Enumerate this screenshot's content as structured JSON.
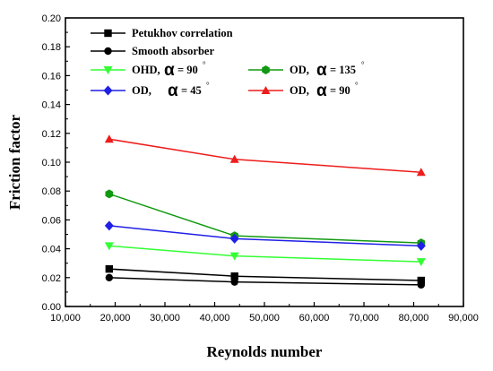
{
  "chart_data": {
    "type": "line",
    "xlabel": "Reynolds number",
    "ylabel": "Friction factor",
    "xlim": [
      10000,
      90000
    ],
    "ylim": [
      0.0,
      0.2
    ],
    "x_ticks": [
      10000,
      20000,
      30000,
      40000,
      50000,
      60000,
      70000,
      80000,
      90000
    ],
    "x_tick_labels": [
      "10,000",
      "20,000",
      "30,000",
      "40,000",
      "50,000",
      "60,000",
      "70,000",
      "80,000",
      "90,000"
    ],
    "y_ticks": [
      0.0,
      0.02,
      0.04,
      0.06,
      0.08,
      0.1,
      0.12,
      0.14,
      0.16,
      0.18,
      0.2
    ],
    "y_tick_labels": [
      "0.00",
      "0.02",
      "0.04",
      "0.06",
      "0.08",
      "0.10",
      "0.12",
      "0.14",
      "0.16",
      "0.18",
      "0.20"
    ],
    "grid": false,
    "legend_position": "top-left",
    "x": [
      18800,
      44000,
      81500
    ],
    "series": [
      {
        "name": "Petukhov correlation",
        "label_text": "Petukhov correlation",
        "color": "#000000",
        "marker": "square",
        "values": [
          0.026,
          0.021,
          0.018
        ]
      },
      {
        "name": "Smooth absorber",
        "label_text": "Smooth absorber",
        "color": "#000000",
        "marker": "circle",
        "values": [
          0.02,
          0.017,
          0.015
        ]
      },
      {
        "name": "OHD, α = 90°",
        "label_text": "OHD,",
        "alpha_text": "α",
        "angle_text": "= 90",
        "degree_text": "°",
        "color": "#33ff33",
        "marker": "triangle-down",
        "values": [
          0.042,
          0.035,
          0.031
        ]
      },
      {
        "name": "OD, α = 135°",
        "label_text": "OD,",
        "alpha_text": "α",
        "angle_text": "= 135",
        "degree_text": "°",
        "color": "#119911",
        "marker": "hexagon",
        "values": [
          0.078,
          0.049,
          0.044
        ]
      },
      {
        "name": "OD, α = 45°",
        "label_text": "OD,",
        "alpha_text": "α",
        "angle_text": "= 45",
        "degree_text": "°",
        "color": "#1f1fe6",
        "marker": "diamond",
        "values": [
          0.056,
          0.047,
          0.042
        ]
      },
      {
        "name": "OD, α = 90°",
        "label_text": "OD,",
        "alpha_text": "α",
        "angle_text": "= 90",
        "degree_text": "°",
        "color": "#ee1c1c",
        "marker": "triangle-up",
        "values": [
          0.116,
          0.102,
          0.093
        ]
      }
    ]
  }
}
